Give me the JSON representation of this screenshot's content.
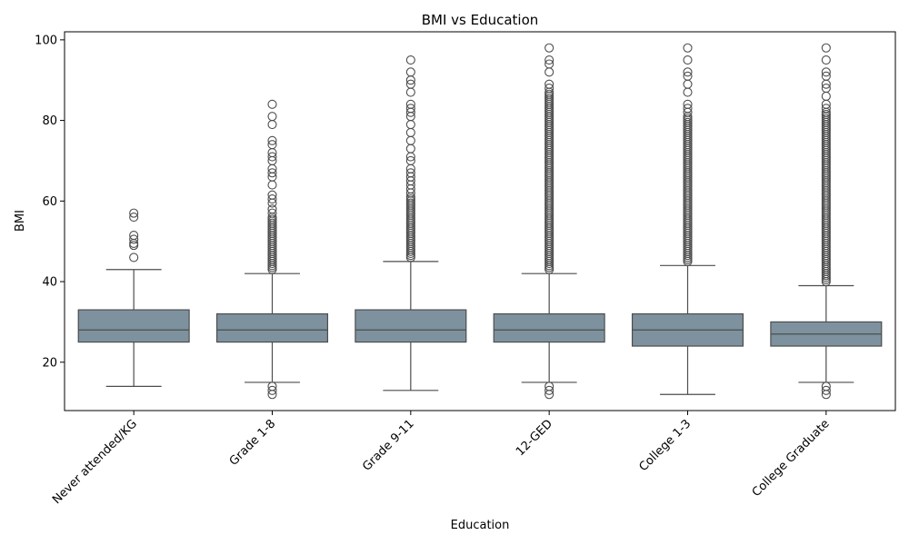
{
  "chart_data": {
    "type": "box",
    "title": "BMI vs Education",
    "xlabel": "Education",
    "ylabel": "BMI",
    "ylim": [
      8,
      102
    ],
    "yticks": [
      20,
      40,
      60,
      80,
      100
    ],
    "grid": false,
    "box_color": "#7d929e",
    "line_color": "#4d4d4d",
    "categories": [
      "Never attended/KG",
      "Grade 1-8",
      "Grade 9-11",
      "12-GED",
      "College 1-3",
      "College Graduate"
    ],
    "boxes": [
      {
        "category": "Never attended/KG",
        "whisker_low": 14,
        "q1": 25,
        "median": 28,
        "q3": 33,
        "whisker_high": 43,
        "outliers_high": [
          46,
          49,
          49.5,
          50.5,
          51.5,
          56,
          57
        ],
        "outliers_low": []
      },
      {
        "category": "Grade 1-8",
        "whisker_low": 15,
        "q1": 25,
        "median": 28,
        "q3": 32,
        "whisker_high": 42,
        "outliers_high": [
          43,
          43.5,
          44,
          44.5,
          45,
          45.5,
          46,
          46.5,
          47,
          47.5,
          48,
          48.5,
          49,
          49.5,
          50,
          50.5,
          51,
          51.5,
          52,
          52.5,
          53,
          53.5,
          54,
          54.5,
          55,
          55.5,
          56,
          57,
          58,
          59.5,
          60.5,
          61.5,
          64,
          66,
          67,
          68,
          70,
          71,
          72,
          74,
          75,
          79,
          81,
          84
        ],
        "outliers_low": [
          12,
          13,
          14
        ]
      },
      {
        "category": "Grade 9-11",
        "whisker_low": 13,
        "q1": 25,
        "median": 28,
        "q3": 33,
        "whisker_high": 45,
        "outliers_high": [
          46,
          46.5,
          47,
          47.5,
          48,
          48.5,
          49,
          49.5,
          50,
          50.5,
          51,
          51.5,
          52,
          52.5,
          53,
          53.5,
          54,
          54.5,
          55,
          55.5,
          56,
          56.5,
          57,
          57.5,
          58,
          58.5,
          59,
          59.5,
          60,
          60.5,
          61,
          62,
          63,
          64,
          65,
          66,
          67,
          68,
          70,
          71,
          73,
          75,
          77,
          79,
          81,
          82,
          83,
          84,
          87,
          89,
          90,
          92,
          95
        ],
        "outliers_low": []
      },
      {
        "category": "12-GED",
        "whisker_low": 15,
        "q1": 25,
        "median": 28,
        "q3": 32,
        "whisker_high": 42,
        "outliers_high": [
          43,
          43.5,
          44,
          44.5,
          45,
          45.5,
          46,
          46.5,
          47,
          47.5,
          48,
          48.5,
          49,
          49.5,
          50,
          50.5,
          51,
          51.5,
          52,
          52.5,
          53,
          53.5,
          54,
          54.5,
          55,
          55.5,
          56,
          56.5,
          57,
          57.5,
          58,
          58.5,
          59,
          59.5,
          60,
          60.5,
          61,
          61.5,
          62,
          62.5,
          63,
          63.5,
          64,
          64.5,
          65,
          65.5,
          66,
          66.5,
          67,
          67.5,
          68,
          68.5,
          69,
          69.5,
          70,
          70.5,
          71,
          71.5,
          72,
          72.5,
          73,
          73.5,
          74,
          74.5,
          75,
          75.5,
          76,
          76.5,
          77,
          77.5,
          78,
          78.5,
          79,
          79.5,
          80,
          80.5,
          81,
          81.5,
          82,
          82.5,
          83,
          83.5,
          84,
          84.5,
          85,
          85.5,
          86,
          86.5,
          87,
          88,
          89,
          92,
          94,
          95,
          98
        ],
        "outliers_low": [
          12,
          13,
          14
        ]
      },
      {
        "category": "College 1-3",
        "whisker_low": 12,
        "q1": 24,
        "median": 28,
        "q3": 32,
        "whisker_high": 44,
        "outliers_high": [
          45,
          45.5,
          46,
          46.5,
          47,
          47.5,
          48,
          48.5,
          49,
          49.5,
          50,
          50.5,
          51,
          51.5,
          52,
          52.5,
          53,
          53.5,
          54,
          54.5,
          55,
          55.5,
          56,
          56.5,
          57,
          57.5,
          58,
          58.5,
          59,
          59.5,
          60,
          60.5,
          61,
          61.5,
          62,
          62.5,
          63,
          63.5,
          64,
          64.5,
          65,
          65.5,
          66,
          66.5,
          67,
          67.5,
          68,
          68.5,
          69,
          69.5,
          70,
          70.5,
          71,
          71.5,
          72,
          72.5,
          73,
          73.5,
          74,
          74.5,
          75,
          75.5,
          76,
          76.5,
          77,
          77.5,
          78,
          78.5,
          79,
          79.5,
          80,
          80.5,
          81,
          82,
          83,
          84,
          87,
          89,
          91,
          92,
          95,
          98
        ],
        "outliers_low": []
      },
      {
        "category": "College Graduate",
        "whisker_low": 15,
        "q1": 24,
        "median": 27,
        "q3": 30,
        "whisker_high": 39,
        "outliers_high": [
          40,
          40.5,
          41,
          41.5,
          42,
          42.5,
          43,
          43.5,
          44,
          44.5,
          45,
          45.5,
          46,
          46.5,
          47,
          47.5,
          48,
          48.5,
          49,
          49.5,
          50,
          50.5,
          51,
          51.5,
          52,
          52.5,
          53,
          53.5,
          54,
          54.5,
          55,
          55.5,
          56,
          56.5,
          57,
          57.5,
          58,
          58.5,
          59,
          59.5,
          60,
          60.5,
          61,
          61.5,
          62,
          62.5,
          63,
          63.5,
          64,
          64.5,
          65,
          65.5,
          66,
          66.5,
          67,
          67.5,
          68,
          68.5,
          69,
          69.5,
          70,
          70.5,
          71,
          71.5,
          72,
          72.5,
          73,
          73.5,
          74,
          74.5,
          75,
          75.5,
          76,
          76.5,
          77,
          77.5,
          78,
          78.5,
          79,
          79.5,
          80,
          80.5,
          81,
          81.5,
          82,
          83,
          84,
          86,
          88,
          89,
          91,
          92,
          95,
          98
        ],
        "outliers_low": [
          12,
          13,
          14
        ]
      }
    ]
  }
}
